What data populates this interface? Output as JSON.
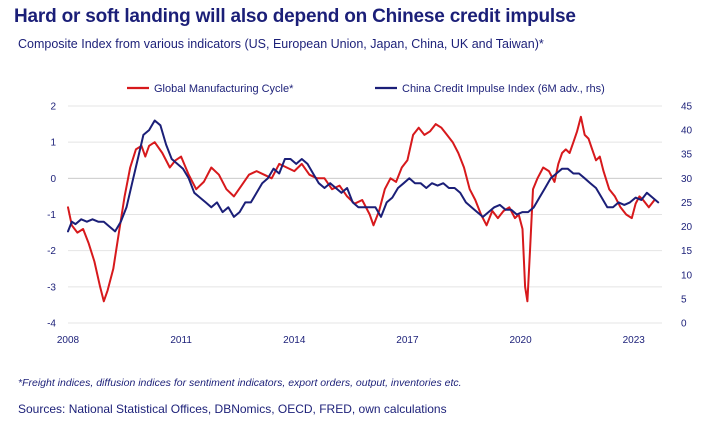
{
  "header": {
    "title": "Hard or soft landing will also depend on Chinese credit impulse",
    "subtitle": "Composite Index from various indicators (US, European Union, Japan, China, UK and Taiwan)*"
  },
  "footer": {
    "footnote": "*Freight indices, diffusion indices for sentiment indicators, export orders, output, inventories etc.",
    "sources": "Sources: National Statistical Offices, DBNomics, OECD, FRED, own calculations"
  },
  "colors": {
    "title": "#1b1f78",
    "series_left": "#d7191c",
    "series_right": "#1b1f78",
    "grid": "#e4e4e4"
  },
  "chart_data": {
    "type": "line",
    "title": "Hard or soft landing will also depend on Chinese credit impulse",
    "legend_position": "top",
    "grid": "horizontal",
    "x_range": [
      2008.0,
      2023.75
    ],
    "x_ticks": [
      2008,
      2011,
      2014,
      2017,
      2020,
      2023
    ],
    "x_tick_labels": [
      "2008",
      "2011",
      "2014",
      "2017",
      "2020",
      "2023"
    ],
    "y_left": {
      "range": [
        -4,
        2
      ],
      "ticks": [
        -4,
        -3,
        -2,
        -1,
        0,
        1,
        2
      ],
      "labels": [
        "-4",
        "-3",
        "-2",
        "-1",
        "0",
        "1",
        "2"
      ]
    },
    "y_right": {
      "range": [
        0,
        45
      ],
      "ticks": [
        0,
        5,
        10,
        15,
        20,
        25,
        30,
        35,
        40,
        45
      ],
      "labels": [
        "0",
        "5",
        "10",
        "15",
        "20",
        "25",
        "30",
        "35",
        "40",
        "45"
      ]
    },
    "series": [
      {
        "name": "Global Manufacturing Cycle*",
        "axis": "left",
        "color": "#d7191c",
        "x": [
          2008.0,
          2008.1,
          2008.25,
          2008.4,
          2008.55,
          2008.7,
          2008.85,
          2008.95,
          2009.05,
          2009.2,
          2009.35,
          2009.5,
          2009.65,
          2009.8,
          2009.95,
          2010.05,
          2010.15,
          2010.3,
          2010.5,
          2010.7,
          2010.85,
          2011.0,
          2011.2,
          2011.4,
          2011.6,
          2011.8,
          2012.0,
          2012.2,
          2012.4,
          2012.6,
          2012.8,
          2013.0,
          2013.2,
          2013.4,
          2013.6,
          2013.8,
          2014.0,
          2014.2,
          2014.4,
          2014.6,
          2014.8,
          2015.0,
          2015.2,
          2015.4,
          2015.6,
          2015.8,
          2016.0,
          2016.1,
          2016.25,
          2016.4,
          2016.55,
          2016.7,
          2016.85,
          2017.0,
          2017.15,
          2017.3,
          2017.45,
          2017.6,
          2017.75,
          2017.9,
          2018.05,
          2018.2,
          2018.35,
          2018.5,
          2018.65,
          2018.8,
          2018.95,
          2019.1,
          2019.25,
          2019.4,
          2019.55,
          2019.7,
          2019.85,
          2019.95,
          2020.05,
          2020.12,
          2020.18,
          2020.25,
          2020.33,
          2020.45,
          2020.6,
          2020.75,
          2020.9,
          2021.0,
          2021.1,
          2021.2,
          2021.3,
          2021.4,
          2021.5,
          2021.6,
          2021.7,
          2021.8,
          2021.9,
          2022.0,
          2022.1,
          2022.2,
          2022.35,
          2022.5,
          2022.65,
          2022.8,
          2022.95,
          2023.05,
          2023.15,
          2023.25,
          2023.4,
          2023.55
        ],
        "values": [
          -0.8,
          -1.3,
          -1.5,
          -1.4,
          -1.8,
          -2.3,
          -3.0,
          -3.4,
          -3.1,
          -2.5,
          -1.5,
          -0.5,
          0.3,
          0.8,
          0.9,
          0.6,
          0.9,
          1.0,
          0.7,
          0.3,
          0.5,
          0.6,
          0.1,
          -0.3,
          -0.1,
          0.3,
          0.1,
          -0.3,
          -0.5,
          -0.2,
          0.1,
          0.2,
          0.1,
          0.0,
          0.4,
          0.3,
          0.2,
          0.4,
          0.1,
          0.0,
          0.0,
          -0.3,
          -0.2,
          -0.5,
          -0.7,
          -0.6,
          -1.0,
          -1.3,
          -0.9,
          -0.3,
          0.0,
          -0.1,
          0.3,
          0.5,
          1.2,
          1.4,
          1.2,
          1.3,
          1.5,
          1.4,
          1.2,
          1.0,
          0.7,
          0.3,
          -0.3,
          -0.6,
          -1.0,
          -1.3,
          -0.9,
          -1.1,
          -0.9,
          -0.8,
          -1.1,
          -1.0,
          -1.4,
          -3.0,
          -3.4,
          -2.0,
          -0.3,
          0.0,
          0.3,
          0.2,
          -0.1,
          0.4,
          0.7,
          0.8,
          0.7,
          1.0,
          1.3,
          1.7,
          1.2,
          1.1,
          0.8,
          0.5,
          0.6,
          0.2,
          -0.3,
          -0.5,
          -0.8,
          -1.0,
          -1.1,
          -0.7,
          -0.5,
          -0.6,
          -0.8,
          -0.6
        ]
      },
      {
        "name": "China Credit Impulse Index (6M adv., rhs)",
        "axis": "right",
        "color": "#1b1f78",
        "x": [
          2008.0,
          2008.1,
          2008.2,
          2008.35,
          2008.5,
          2008.65,
          2008.8,
          2008.95,
          2009.1,
          2009.25,
          2009.4,
          2009.55,
          2009.7,
          2009.85,
          2010.0,
          2010.15,
          2010.3,
          2010.45,
          2010.6,
          2010.75,
          2010.9,
          2011.05,
          2011.2,
          2011.35,
          2011.5,
          2011.65,
          2011.8,
          2011.95,
          2012.1,
          2012.25,
          2012.4,
          2012.55,
          2012.7,
          2012.85,
          2013.0,
          2013.15,
          2013.3,
          2013.45,
          2013.6,
          2013.75,
          2013.9,
          2014.05,
          2014.2,
          2014.35,
          2014.5,
          2014.65,
          2014.8,
          2014.95,
          2015.1,
          2015.25,
          2015.4,
          2015.55,
          2015.7,
          2015.85,
          2016.0,
          2016.15,
          2016.3,
          2016.45,
          2016.6,
          2016.75,
          2016.9,
          2017.05,
          2017.2,
          2017.35,
          2017.5,
          2017.65,
          2017.8,
          2017.95,
          2018.1,
          2018.25,
          2018.4,
          2018.55,
          2018.7,
          2018.85,
          2019.0,
          2019.15,
          2019.3,
          2019.45,
          2019.6,
          2019.75,
          2019.9,
          2020.05,
          2020.2,
          2020.35,
          2020.5,
          2020.65,
          2020.8,
          2020.95,
          2021.1,
          2021.25,
          2021.4,
          2021.55,
          2021.7,
          2021.85,
          2022.0,
          2022.15,
          2022.3,
          2022.45,
          2022.6,
          2022.75,
          2022.9,
          2023.05,
          2023.2,
          2023.35,
          2023.5,
          2023.65
        ],
        "values": [
          19,
          21,
          20.5,
          21.5,
          21,
          21.5,
          21,
          21,
          20,
          19,
          21,
          24,
          29,
          34,
          39,
          40,
          42,
          41,
          37,
          34,
          33,
          32,
          30,
          27,
          26,
          25,
          24,
          25,
          23,
          24,
          22,
          23,
          25,
          25,
          27,
          29,
          30,
          32,
          31,
          34,
          34,
          33,
          34,
          33,
          31,
          29,
          28,
          29,
          28,
          27,
          28,
          25,
          24,
          24,
          24,
          24,
          22,
          25,
          26,
          28,
          29,
          30,
          29,
          29,
          28,
          29,
          28.5,
          29,
          28,
          28,
          27,
          25,
          24,
          23,
          22,
          23,
          24,
          24.5,
          23.5,
          23.5,
          22.5,
          23,
          23,
          24,
          26,
          28,
          30,
          31,
          32,
          32,
          31,
          31,
          30,
          29,
          28,
          26,
          24,
          24,
          25,
          24.5,
          25,
          26,
          25.5,
          27,
          26,
          25
        ]
      }
    ]
  }
}
